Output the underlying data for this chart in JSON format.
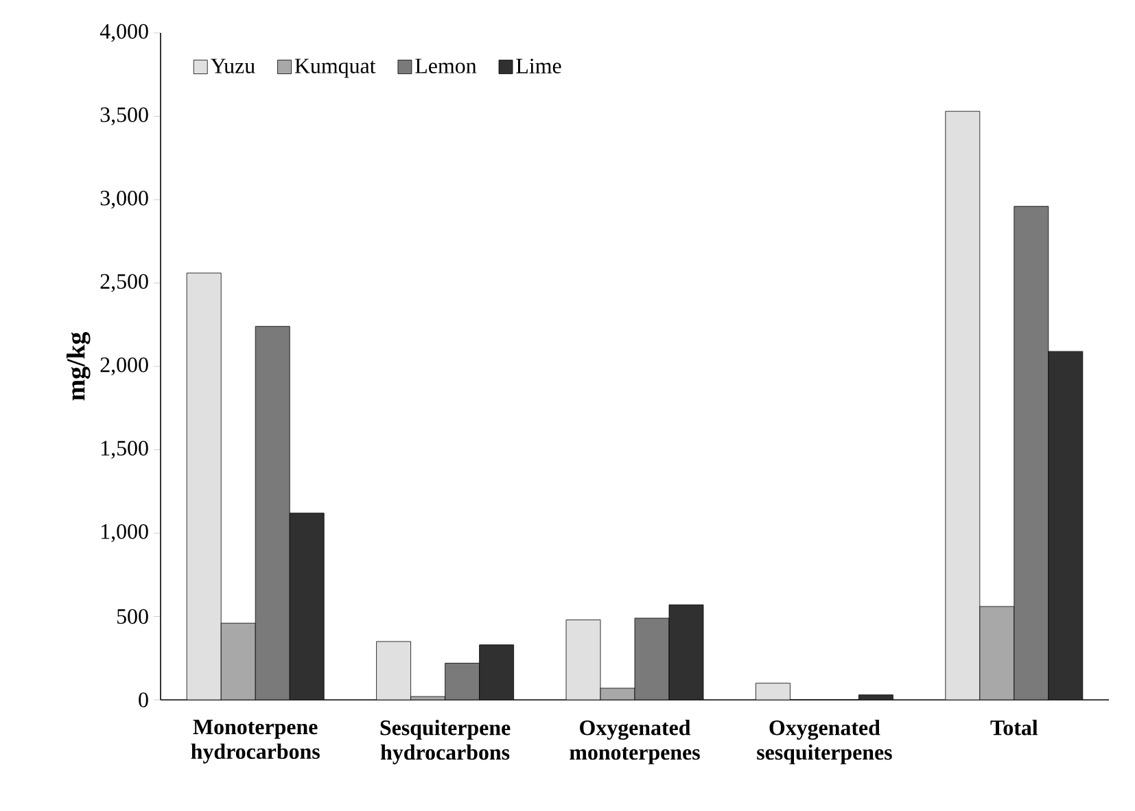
{
  "chart_data": {
    "type": "bar",
    "ylabel": "mg/kg",
    "categories": [
      "Monoterpene hydrocarbons",
      "Sesquiterpene hydrocarbons",
      "Oxygenated monoterpenes",
      "Oxygenated sesquiterpenes",
      "Total"
    ],
    "series": [
      {
        "name": "Yuzu",
        "color": "#e0e0e0",
        "values": [
          2560,
          350,
          480,
          100,
          3530
        ]
      },
      {
        "name": "Kumquat",
        "color": "#a8a8a8",
        "values": [
          460,
          20,
          70,
          0,
          560
        ]
      },
      {
        "name": "Lemon",
        "color": "#7a7a7a",
        "values": [
          2240,
          220,
          490,
          0,
          2960
        ]
      },
      {
        "name": "Lime",
        "color": "#303030",
        "values": [
          1120,
          330,
          570,
          30,
          2090
        ]
      }
    ],
    "ylim": [
      0,
      4000
    ],
    "yticks": [
      0,
      500,
      {
        "value": 1000,
        "label": "1,000"
      },
      {
        "value": 1500,
        "label": "1,500"
      },
      {
        "value": 2000,
        "label": "2,000"
      },
      {
        "value": 2500,
        "label": "2,500"
      },
      {
        "value": 3000,
        "label": "3,000"
      },
      {
        "value": 3500,
        "label": "3,500"
      },
      {
        "value": 4000,
        "label": "4,000"
      }
    ],
    "legend": "top left",
    "grid": false
  }
}
